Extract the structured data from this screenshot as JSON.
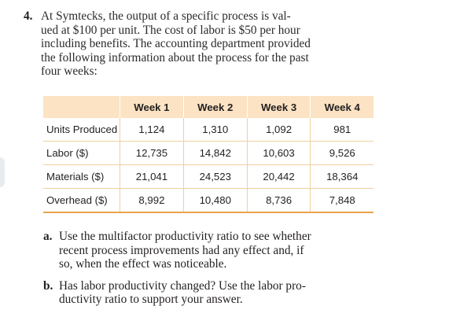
{
  "problem": {
    "number": "4.",
    "text": "At Symtecks, the output of a specific process is val-\nued at $100 per unit. The cost of labor is $50 per hour\nincluding benefits. The accounting department provided\nthe following information about the process for the past\nfour weeks:"
  },
  "table": {
    "headers": [
      "",
      "Week 1",
      "Week 2",
      "Week 3",
      "Week 4"
    ],
    "rows": [
      {
        "label": "Units Produced",
        "values": [
          "1,124",
          "1,310",
          "1,092",
          "981"
        ]
      },
      {
        "label": "Labor ($)",
        "values": [
          "12,735",
          "14,842",
          "10,603",
          "9,526"
        ]
      },
      {
        "label": "Materials ($)",
        "values": [
          "21,041",
          "24,523",
          "20,442",
          "18,364"
        ]
      },
      {
        "label": "Overhead ($)",
        "values": [
          "8,992",
          "10,480",
          "8,736",
          "7,848"
        ]
      }
    ],
    "header_color": "#fbe3c3",
    "rule_color": "#e9a44a"
  },
  "parts": [
    {
      "letter": "a.",
      "text": "Use the multifactor productivity ratio to see whether\nrecent process improvements had any effect and, if\nso, when the effect was noticeable."
    },
    {
      "letter": "b.",
      "text": "Has labor productivity changed? Use the labor pro-\nductivity ratio to support your answer."
    }
  ]
}
